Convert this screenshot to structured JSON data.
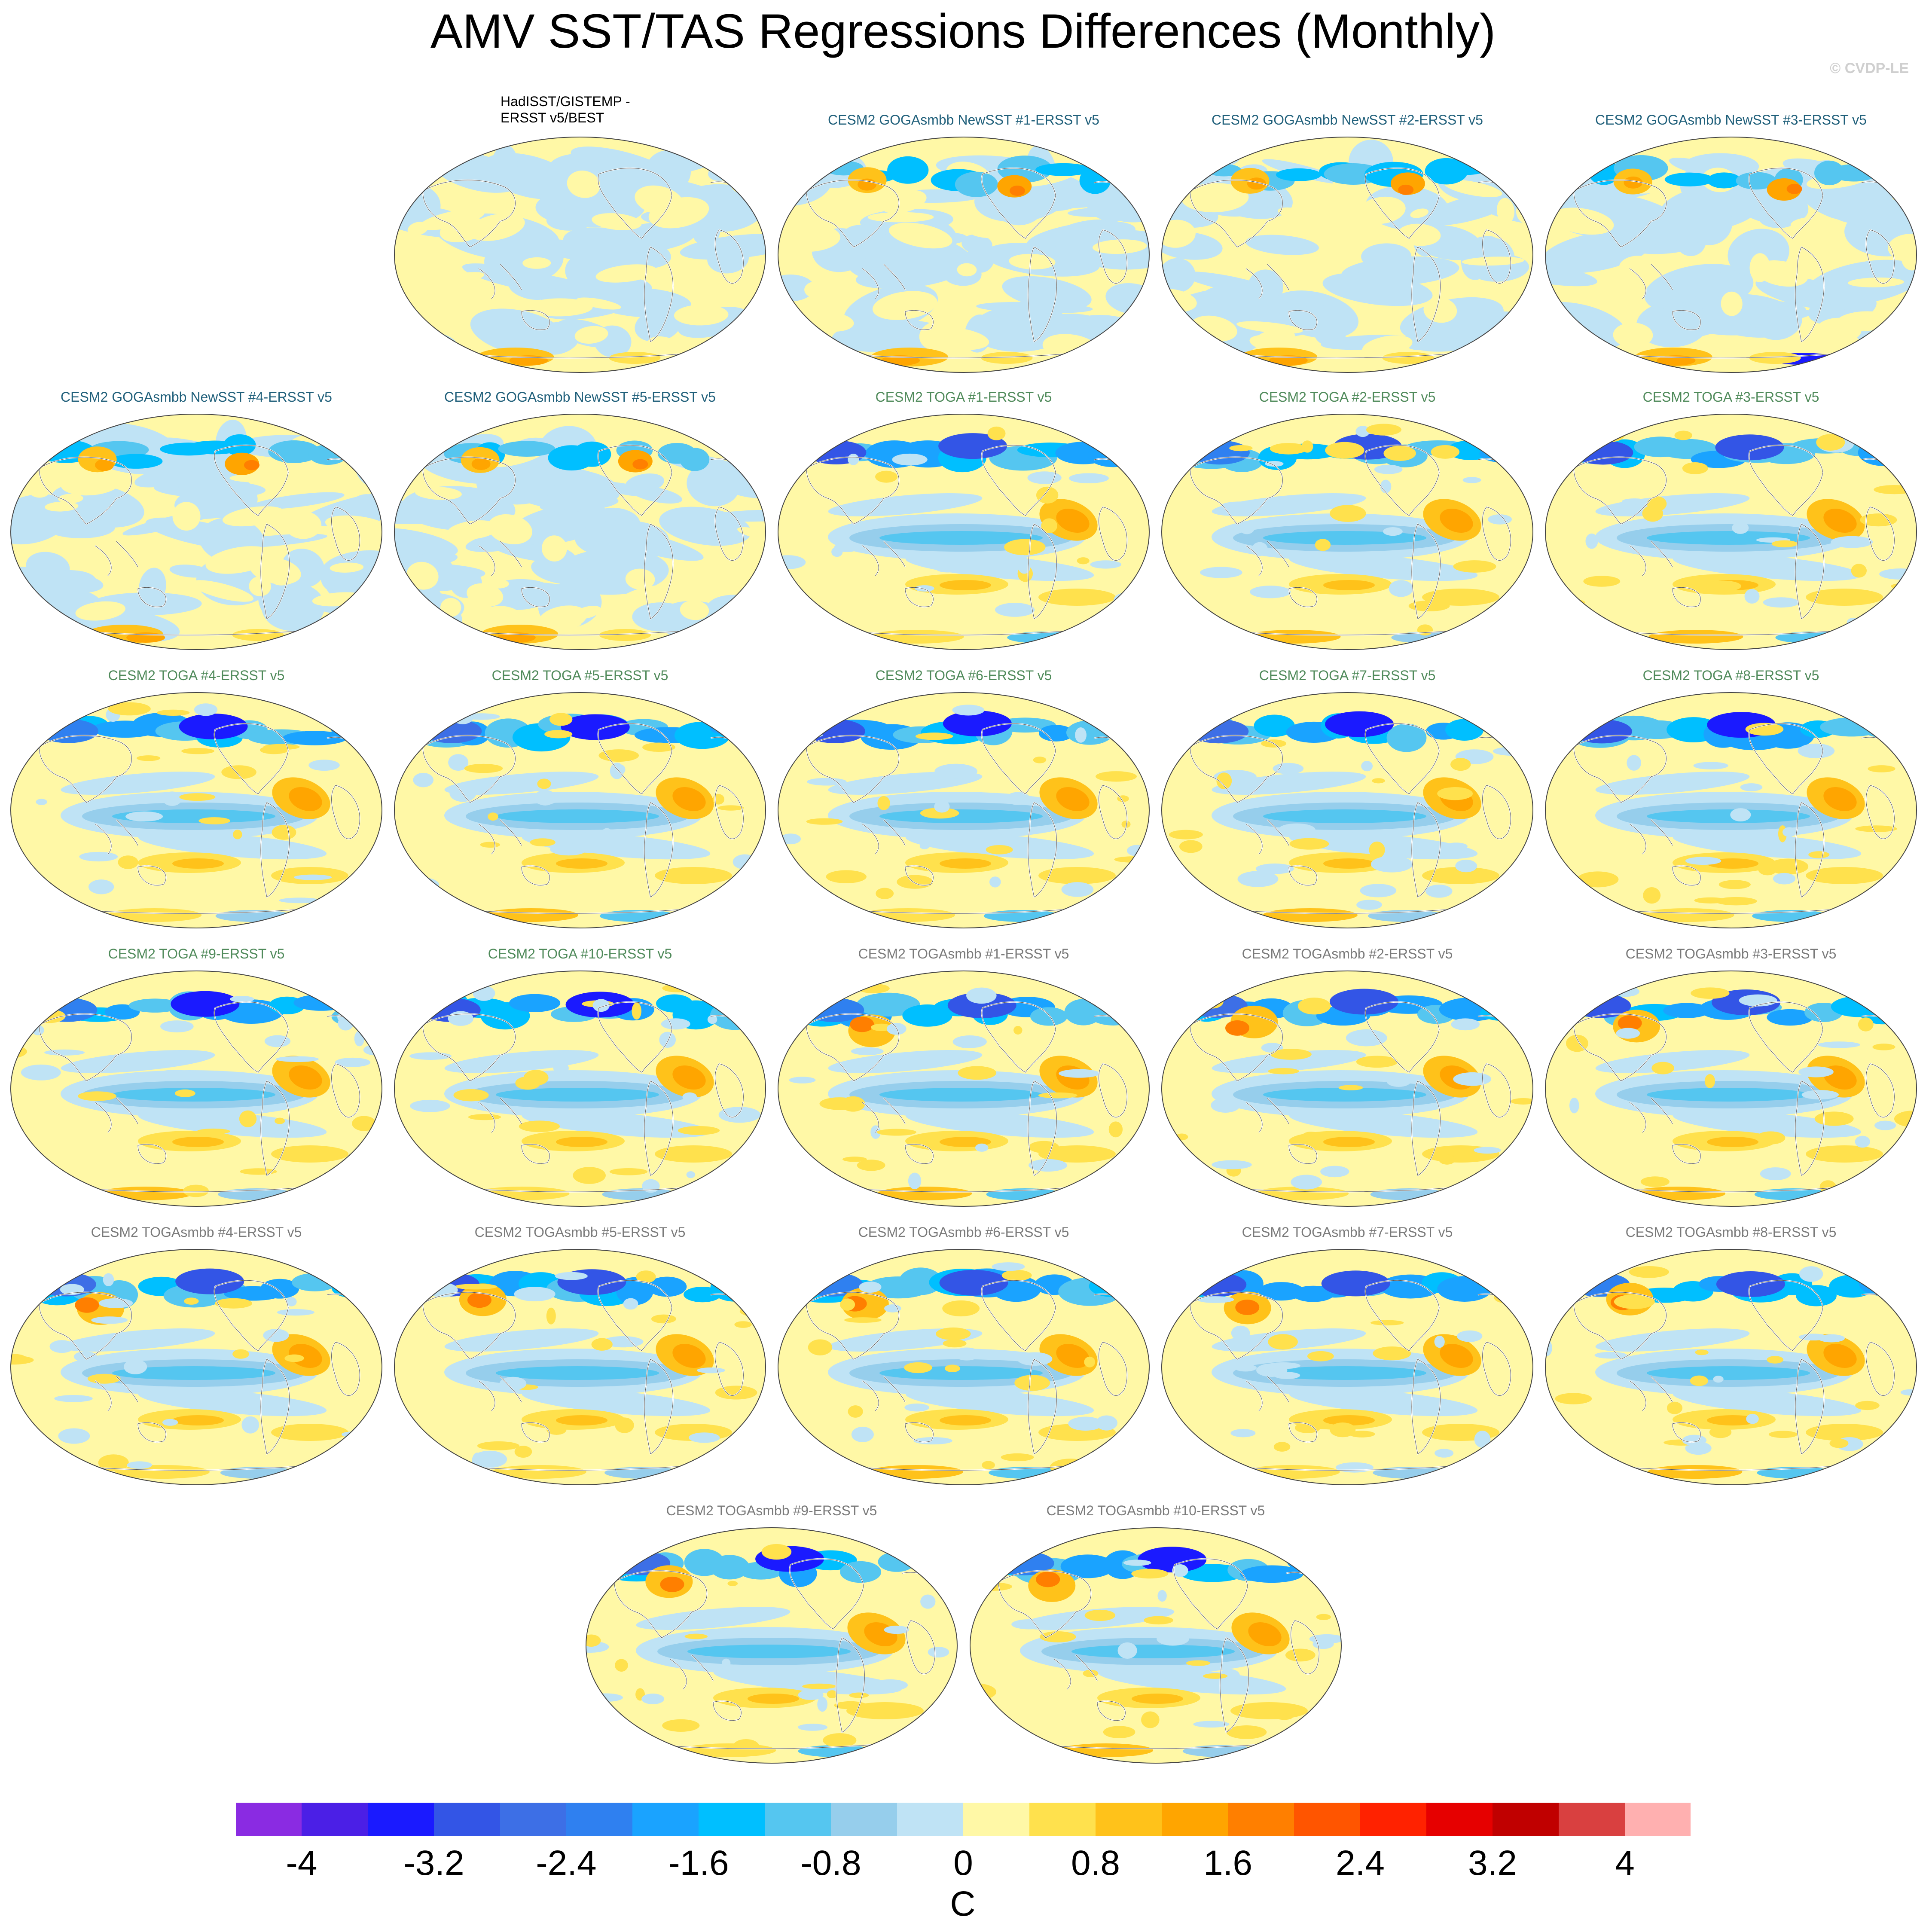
{
  "title": "AMV SST/TAS Regressions Differences (Monthly)",
  "credit": "© CVDP-LE",
  "panels": [
    {
      "label": "HadISST/GISTEMP -\nERSST v5/BEST",
      "group": "obs",
      "pattern": "obs"
    },
    {
      "label": "CESM2 GOGAsmbb NewSST #1-ERSST v5",
      "group": "goga",
      "pattern": "goga1"
    },
    {
      "label": "CESM2 GOGAsmbb NewSST #2-ERSST v5",
      "group": "goga",
      "pattern": "goga2"
    },
    {
      "label": "CESM2 GOGAsmbb NewSST #3-ERSST v5",
      "group": "goga",
      "pattern": "goga3"
    },
    {
      "label": "CESM2 GOGAsmbb NewSST #4-ERSST v5",
      "group": "goga",
      "pattern": "goga4"
    },
    {
      "label": "CESM2 GOGAsmbb NewSST #5-ERSST v5",
      "group": "goga",
      "pattern": "goga5"
    },
    {
      "label": "CESM2 TOGA #1-ERSST v5",
      "group": "toga",
      "pattern": "toga"
    },
    {
      "label": "CESM2 TOGA #2-ERSST v5",
      "group": "toga",
      "pattern": "toga"
    },
    {
      "label": "CESM2 TOGA #3-ERSST v5",
      "group": "toga",
      "pattern": "toga"
    },
    {
      "label": "CESM2 TOGA #4-ERSST v5",
      "group": "toga",
      "pattern": "toga"
    },
    {
      "label": "CESM2 TOGA #5-ERSST v5",
      "group": "toga",
      "pattern": "toga"
    },
    {
      "label": "CESM2 TOGA #6-ERSST v5",
      "group": "toga",
      "pattern": "toga"
    },
    {
      "label": "CESM2 TOGA #7-ERSST v5",
      "group": "toga",
      "pattern": "toga"
    },
    {
      "label": "CESM2 TOGA #8-ERSST v5",
      "group": "toga",
      "pattern": "toga"
    },
    {
      "label": "CESM2 TOGA #9-ERSST v5",
      "group": "toga",
      "pattern": "toga"
    },
    {
      "label": "CESM2 TOGA #10-ERSST v5",
      "group": "toga",
      "pattern": "toga"
    },
    {
      "label": "CESM2 TOGAsmbb #1-ERSST v5",
      "group": "togasmbb",
      "pattern": "smbb"
    },
    {
      "label": "CESM2 TOGAsmbb #2-ERSST v5",
      "group": "togasmbb",
      "pattern": "smbb"
    },
    {
      "label": "CESM2 TOGAsmbb #3-ERSST v5",
      "group": "togasmbb",
      "pattern": "smbb"
    },
    {
      "label": "CESM2 TOGAsmbb #4-ERSST v5",
      "group": "togasmbb",
      "pattern": "smbb"
    },
    {
      "label": "CESM2 TOGAsmbb #5-ERSST v5",
      "group": "togasmbb",
      "pattern": "smbb"
    },
    {
      "label": "CESM2 TOGAsmbb #6-ERSST v5",
      "group": "togasmbb",
      "pattern": "smbb"
    },
    {
      "label": "CESM2 TOGAsmbb #7-ERSST v5",
      "group": "togasmbb",
      "pattern": "smbb"
    },
    {
      "label": "CESM2 TOGAsmbb #8-ERSST v5",
      "group": "togasmbb",
      "pattern": "smbb"
    },
    {
      "label": "CESM2 TOGAsmbb #9-ERSST v5",
      "group": "togasmbb",
      "pattern": "smbb"
    },
    {
      "label": "CESM2 TOGAsmbb #10-ERSST v5",
      "group": "togasmbb",
      "pattern": "smbb"
    }
  ],
  "label_colors": {
    "obs": "#000000",
    "goga": "#1f5f7a",
    "toga": "#4f8a5a",
    "togasmbb": "#7a7a7a"
  },
  "colorbar": {
    "unit": "C",
    "colors": [
      "#8a2be2",
      "#4b1fe6",
      "#1a1aff",
      "#3355e6",
      "#3d6fe6",
      "#2f80f0",
      "#1aa3ff",
      "#00bfff",
      "#55c6f0",
      "#96ceec",
      "#bfe3f5",
      "#fff8a6",
      "#ffe14d",
      "#ffc21a",
      "#ffa500",
      "#ff7f00",
      "#ff5500",
      "#ff2200",
      "#e60000",
      "#c00000",
      "#d94040",
      "#ffb0b0"
    ],
    "tick_labels": [
      "-4",
      "-3.2",
      "-2.4",
      "-1.6",
      "-0.8",
      "0",
      "0.8",
      "1.6",
      "2.4",
      "3.2",
      "4"
    ]
  }
}
